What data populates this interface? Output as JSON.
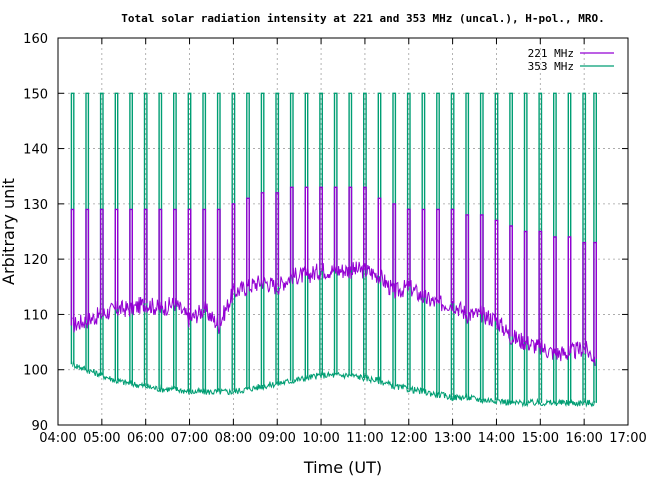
{
  "chart_data": {
    "type": "line",
    "title": "Total solar radiation intensity at 221 and 353 MHz (uncal.), H-pol., MRO.",
    "xlabel": "Time (UT)",
    "ylabel": "Arbitrary unit",
    "xlim": [
      "04:00",
      "17:00"
    ],
    "ylim": [
      90,
      160
    ],
    "xticks": [
      "04:00",
      "05:00",
      "06:00",
      "07:00",
      "08:00",
      "09:00",
      "10:00",
      "11:00",
      "12:00",
      "13:00",
      "14:00",
      "15:00",
      "16:00",
      "17:00"
    ],
    "yticks": [
      90,
      100,
      110,
      120,
      130,
      140,
      150,
      160
    ],
    "grid": true,
    "legend_position": "top-right",
    "series": [
      {
        "name": "221 MHz",
        "color": "#9400d3",
        "x": [
          "04:20",
          "04:40",
          "05:00",
          "05:20",
          "05:40",
          "06:00",
          "06:20",
          "06:40",
          "07:00",
          "07:20",
          "07:40",
          "08:00",
          "08:20",
          "08:40",
          "09:00",
          "09:20",
          "09:40",
          "10:00",
          "10:20",
          "10:40",
          "11:00",
          "11:20",
          "11:40",
          "12:00",
          "12:20",
          "12:40",
          "13:00",
          "13:20",
          "13:40",
          "14:00",
          "14:20",
          "14:40",
          "15:00",
          "15:20",
          "15:40",
          "16:00",
          "16:15"
        ],
        "y": [
          108,
          109,
          110,
          111,
          111,
          112,
          111,
          112,
          109,
          111,
          108,
          114,
          115,
          116,
          115,
          117,
          117,
          118,
          118,
          118,
          118,
          117,
          114,
          115,
          113,
          112,
          112,
          110,
          110,
          109,
          106,
          105,
          104,
          103,
          103,
          104,
          102
        ],
        "spike_peaks": [
          129,
          129,
          129,
          129,
          129,
          129,
          129,
          129,
          129,
          129,
          129,
          130,
          131,
          132,
          132,
          133,
          133,
          133,
          133,
          133,
          133,
          131,
          130,
          129,
          129,
          129,
          129,
          128,
          128,
          127,
          126,
          125,
          125,
          124,
          124,
          123,
          123
        ]
      },
      {
        "name": "353 MHz",
        "color": "#009e73",
        "x": [
          "04:20",
          "04:40",
          "05:00",
          "05:20",
          "05:40",
          "06:00",
          "06:20",
          "06:40",
          "07:00",
          "07:20",
          "07:40",
          "08:00",
          "08:20",
          "08:40",
          "09:00",
          "09:20",
          "09:40",
          "10:00",
          "10:20",
          "10:40",
          "11:00",
          "11:20",
          "11:40",
          "12:00",
          "12:20",
          "12:40",
          "13:00",
          "13:20",
          "13:40",
          "14:00",
          "14:20",
          "14:40",
          "15:00",
          "15:20",
          "15:40",
          "16:00",
          "16:15"
        ],
        "y": [
          101,
          100,
          99,
          98,
          97.5,
          97,
          96.5,
          96.5,
          96,
          96,
          96,
          96,
          96.5,
          97,
          97.5,
          98,
          98.5,
          99,
          99,
          99,
          98.5,
          98,
          97,
          96.5,
          96,
          95.5,
          95,
          95,
          94.5,
          94.5,
          94,
          94,
          94,
          94,
          94,
          94,
          94
        ],
        "spike_peaks": [
          150,
          150,
          150,
          150,
          150,
          150,
          150,
          150,
          150,
          150,
          150,
          150,
          150,
          150,
          150,
          150,
          150,
          150,
          150,
          150,
          150,
          150,
          150,
          150,
          150,
          150,
          150,
          150,
          150,
          150,
          150,
          150,
          150,
          150,
          150,
          150,
          150
        ]
      }
    ]
  }
}
